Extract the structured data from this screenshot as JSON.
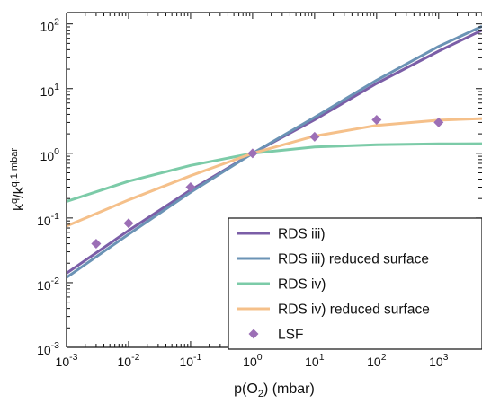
{
  "chart_data": {
    "type": "line",
    "xlabel": "p(O₂) (mbar)",
    "ylabel": "k^q/k^{q,1 mbar}",
    "ylabel_base": "k",
    "ylabel_sup1": "q",
    "ylabel_slash": "/k",
    "ylabel_sup2": "q,1 mbar",
    "xlabel_prefix": "p(O",
    "xlabel_sub": "2",
    "xlabel_suffix": ") (mbar)",
    "x_scale": "log",
    "y_scale": "log",
    "xlim": [
      0.001,
      5000
    ],
    "ylim": [
      0.001,
      150
    ],
    "x_ticks": [
      {
        "value": 0.001,
        "base": "10",
        "exp": "-3"
      },
      {
        "value": 0.01,
        "base": "10",
        "exp": "-2"
      },
      {
        "value": 0.1,
        "base": "10",
        "exp": "-1"
      },
      {
        "value": 1,
        "base": "10",
        "exp": "0"
      },
      {
        "value": 10,
        "base": "10",
        "exp": "1"
      },
      {
        "value": 100,
        "base": "10",
        "exp": "2"
      },
      {
        "value": 1000,
        "base": "10",
        "exp": "3"
      }
    ],
    "y_ticks": [
      {
        "value": 0.001,
        "base": "10",
        "exp": "-3"
      },
      {
        "value": 0.01,
        "base": "10",
        "exp": "-2"
      },
      {
        "value": 0.1,
        "base": "10",
        "exp": "-1"
      },
      {
        "value": 1,
        "base": "10",
        "exp": "0"
      },
      {
        "value": 10,
        "base": "10",
        "exp": "1"
      },
      {
        "value": 100,
        "base": "10",
        "exp": "2"
      }
    ],
    "grid": false,
    "legend_position": "bottom-right",
    "series": [
      {
        "name": "RDS iii)",
        "kind": "line",
        "color": "#7B5EA7",
        "x": [
          0.001,
          0.01,
          0.1,
          1,
          10,
          100,
          1000,
          5000
        ],
        "y": [
          0.014,
          0.064,
          0.27,
          1.0,
          3.3,
          12,
          38,
          80
        ]
      },
      {
        "name": "RDS iii) reduced surface",
        "kind": "line",
        "color": "#6B93B5",
        "x": [
          0.001,
          0.01,
          0.1,
          1,
          10,
          100,
          1000,
          5000
        ],
        "y": [
          0.012,
          0.056,
          0.25,
          1.0,
          3.6,
          13.5,
          45,
          92
        ]
      },
      {
        "name": "RDS iv)",
        "kind": "line",
        "color": "#7CCBA8",
        "x": [
          0.001,
          0.01,
          0.1,
          1,
          10,
          100,
          1000,
          5000
        ],
        "y": [
          0.18,
          0.37,
          0.65,
          1.0,
          1.25,
          1.36,
          1.4,
          1.41
        ]
      },
      {
        "name": "RDS iv) reduced surface",
        "kind": "line",
        "color": "#F5C08A",
        "x": [
          0.001,
          0.01,
          0.1,
          1,
          10,
          100,
          1000,
          5000
        ],
        "y": [
          0.075,
          0.19,
          0.45,
          1.0,
          1.85,
          2.7,
          3.25,
          3.45
        ]
      },
      {
        "name": "LSF",
        "kind": "scatter",
        "color": "#9C6FB6",
        "x": [
          0.003,
          0.01,
          0.1,
          1,
          10,
          100,
          1000
        ],
        "y": [
          0.04,
          0.083,
          0.3,
          1.0,
          1.8,
          3.3,
          3.0
        ]
      }
    ]
  }
}
